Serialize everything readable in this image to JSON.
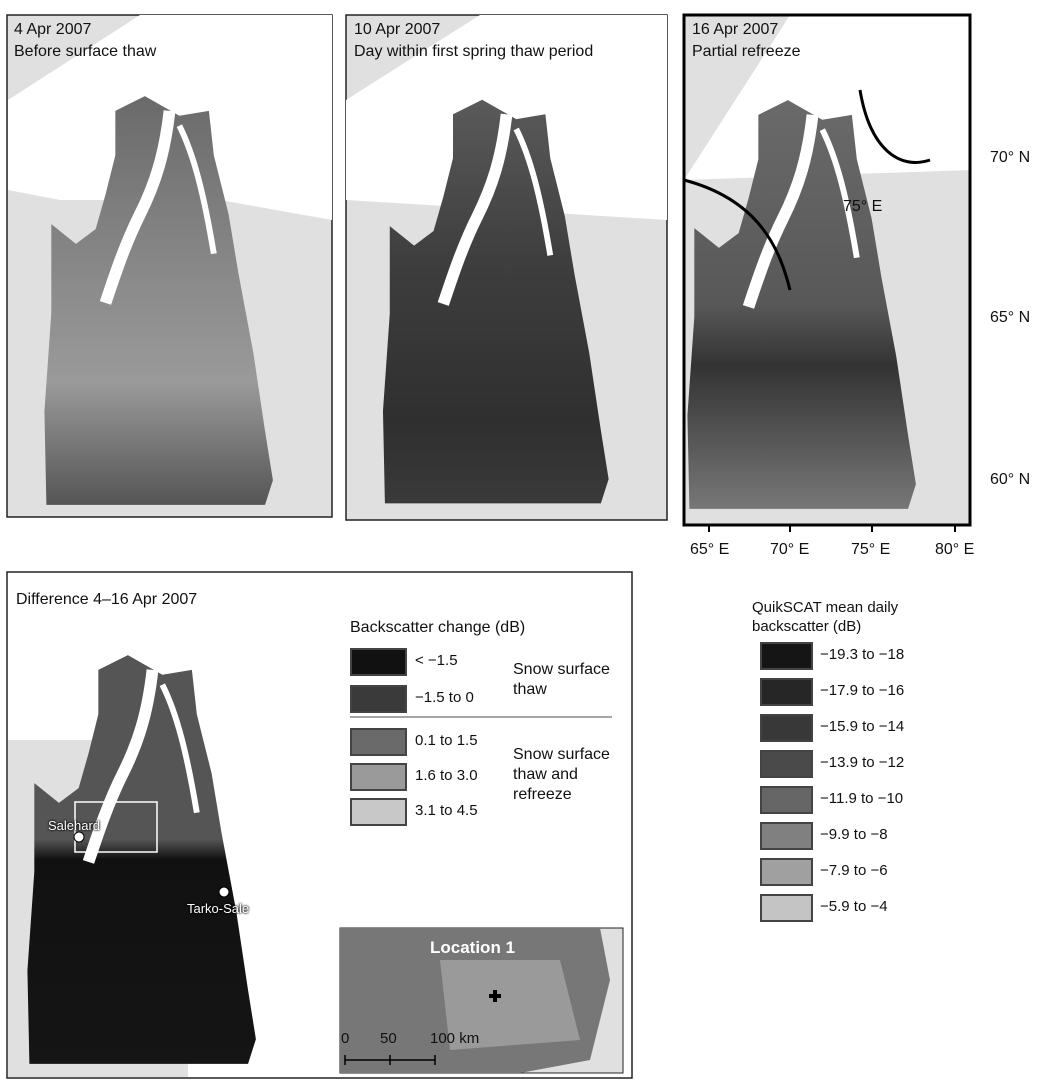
{
  "panels": [
    {
      "date": "4 Apr 2007",
      "caption": "Before surface thaw"
    },
    {
      "date": "10 Apr 2007",
      "caption": "Day within first spring thaw period"
    },
    {
      "date": "16 Apr 2007",
      "caption": "Partial refreeze"
    }
  ],
  "graticule": {
    "lat": [
      "70° N",
      "65° N",
      "60° N"
    ],
    "lon": [
      "65° E",
      "70° E",
      "75° E",
      "80° E"
    ],
    "inner": "75° E"
  },
  "difference": {
    "title": "Difference 4–16 Apr 2007",
    "legend_title": "Backscatter change (dB)",
    "groups": [
      {
        "label": "Snow surface thaw",
        "items": [
          "< −1.5",
          "−1.5 to 0"
        ]
      },
      {
        "label": "Snow surface thaw and refreeze",
        "items": [
          "0.1 to 1.5",
          "1.6 to 3.0",
          "3.1 to 4.5"
        ]
      }
    ],
    "places": [
      "Salehard",
      "Tarko-Sale"
    ],
    "inset": {
      "label": "Location 1",
      "scale": [
        "0",
        "50",
        "100 km"
      ]
    }
  },
  "backscatter_legend": {
    "title": "QuikSCAT mean daily backscatter (dB)",
    "items": [
      "−19.3 to −18",
      "−17.9 to −16",
      "−15.9 to −14",
      "−13.9 to −12",
      "−11.9 to −10",
      "−9.9 to −8",
      "−7.9 to −6",
      "−5.9 to −4"
    ]
  }
}
